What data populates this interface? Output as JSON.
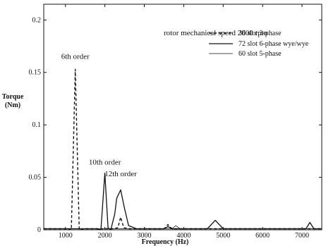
{
  "chart_data": {
    "type": "line",
    "subtitle": "rotor mechanical speed 2000 rpm",
    "xlabel": "Frequency (Hz)",
    "ylabel_line1": "Torque",
    "ylabel_line2": "(Nm)",
    "xlim": [
      450,
      7500
    ],
    "ylim": [
      0,
      0.215
    ],
    "x_ticks": [
      1000,
      2000,
      3000,
      4000,
      5000,
      6000,
      7000
    ],
    "y_ticks": [
      0,
      0.05,
      0.1,
      0.15,
      0.2
    ],
    "x_tick_labels": [
      "1000",
      "2000",
      "3000",
      "4000",
      "5000",
      "6000",
      "7000"
    ],
    "y_tick_labels": [
      "0",
      "0.05",
      "0.1",
      "0.15",
      "0.2"
    ],
    "legend_position": "top-right",
    "grid": false,
    "series": [
      {
        "name": "36 slot 3-phase",
        "style": "dashed",
        "x": [
          450,
          1000,
          1150,
          1250,
          1350,
          1500,
          2200,
          2330,
          2400,
          2480,
          2600,
          3500,
          3600,
          3700,
          7500
        ],
        "y": [
          0.001,
          0.001,
          0.0,
          0.153,
          0.0,
          0.001,
          0.001,
          0.002,
          0.012,
          0.002,
          0.001,
          0.001,
          0.005,
          0.001,
          0.001
        ]
      },
      {
        "name": "72 slot 6-phase wye/wye",
        "style": "solid",
        "x": [
          450,
          1800,
          1900,
          2000,
          2080,
          2150,
          2250,
          2300,
          2400,
          2500,
          2600,
          2800,
          3500,
          3600,
          3700,
          4600,
          4800,
          5000,
          7100,
          7200,
          7300,
          7500
        ],
        "y": [
          0.001,
          0.001,
          0.0,
          0.054,
          0.002,
          0.0,
          0.015,
          0.03,
          0.038,
          0.02,
          0.004,
          0.001,
          0.001,
          0.003,
          0.001,
          0.001,
          0.009,
          0.001,
          0.001,
          0.007,
          0.001,
          0.001
        ]
      },
      {
        "name": "60 slot 5-phase",
        "style": "solid-thin",
        "x": [
          450,
          3700,
          3800,
          3900,
          7500
        ],
        "y": [
          0.001,
          0.001,
          0.004,
          0.001,
          0.001
        ]
      }
    ],
    "annotations": [
      {
        "text": "6th order",
        "x": 1250,
        "y": 0.163
      },
      {
        "text": "10th order",
        "x": 2000,
        "y": 0.062
      },
      {
        "text": "12th order",
        "x": 2400,
        "y": 0.051
      }
    ]
  }
}
